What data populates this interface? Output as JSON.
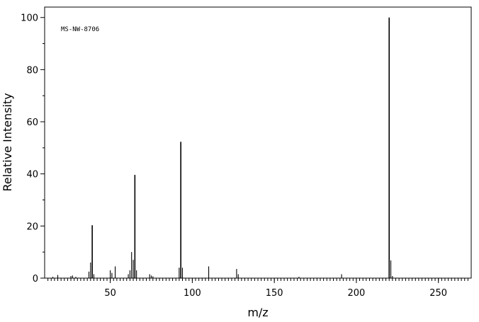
{
  "chart_data": {
    "type": "bar",
    "xlabel": "m/z",
    "ylabel": "Relative Intensity",
    "annotation": "MS-NW-8706",
    "xlim": [
      10,
      270
    ],
    "ylim": [
      0,
      104
    ],
    "x_major_ticks": [
      50,
      100,
      150,
      200,
      250
    ],
    "x_tick_labels": [
      "50",
      "100",
      "150",
      "200",
      "250"
    ],
    "y_major_ticks": [
      0,
      20,
      40,
      60,
      80,
      100
    ],
    "y_tick_labels": [
      "0",
      "20",
      "40",
      "60",
      "80",
      "100"
    ],
    "grid": false,
    "colors": {
      "axis": "#000000",
      "bars": "#000000",
      "background": "#ffffff"
    },
    "peaks": [
      {
        "mz": 15,
        "intensity": 0.5
      },
      {
        "mz": 18,
        "intensity": 1.2
      },
      {
        "mz": 26,
        "intensity": 0.8
      },
      {
        "mz": 27,
        "intensity": 1.0
      },
      {
        "mz": 29,
        "intensity": 0.5
      },
      {
        "mz": 37,
        "intensity": 2.5
      },
      {
        "mz": 38,
        "intensity": 6.0
      },
      {
        "mz": 39,
        "intensity": 20.3
      },
      {
        "mz": 40,
        "intensity": 1.5
      },
      {
        "mz": 50,
        "intensity": 3.0
      },
      {
        "mz": 51,
        "intensity": 2.0
      },
      {
        "mz": 53,
        "intensity": 4.5
      },
      {
        "mz": 61,
        "intensity": 1.5
      },
      {
        "mz": 62,
        "intensity": 3.0
      },
      {
        "mz": 63,
        "intensity": 10.0
      },
      {
        "mz": 64,
        "intensity": 7.0
      },
      {
        "mz": 65,
        "intensity": 39.6
      },
      {
        "mz": 66,
        "intensity": 3.0
      },
      {
        "mz": 74,
        "intensity": 1.5
      },
      {
        "mz": 75,
        "intensity": 1.0
      },
      {
        "mz": 76,
        "intensity": 0.7
      },
      {
        "mz": 92,
        "intensity": 4.0
      },
      {
        "mz": 93,
        "intensity": 52.3
      },
      {
        "mz": 94,
        "intensity": 4.0
      },
      {
        "mz": 110,
        "intensity": 4.5
      },
      {
        "mz": 127,
        "intensity": 3.5
      },
      {
        "mz": 128,
        "intensity": 1.5
      },
      {
        "mz": 165,
        "intensity": 0.5
      },
      {
        "mz": 191,
        "intensity": 1.5
      },
      {
        "mz": 220,
        "intensity": 100
      },
      {
        "mz": 221,
        "intensity": 6.8
      },
      {
        "mz": 222,
        "intensity": 0.8
      }
    ]
  }
}
